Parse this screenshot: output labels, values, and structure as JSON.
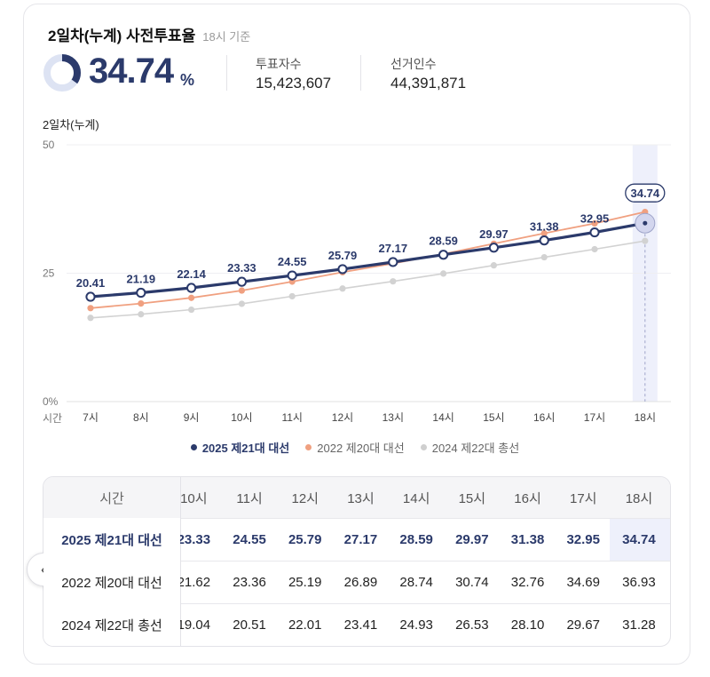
{
  "header": {
    "title": "2일차(누계) 사전투표율",
    "basis": "18시 기준",
    "rate": "34.74",
    "rate_unit": "%",
    "voters_label": "투표자수",
    "voters_value": "15,423,607",
    "electorate_label": "선거인수",
    "electorate_value": "44,391,871"
  },
  "colors": {
    "series_2025": "#2b3a6b",
    "series_2022": "#f0a080",
    "series_2024": "#d2d2d2",
    "highlight_band": "#eef0fb",
    "donut_track": "#dde3f3"
  },
  "chart_data": {
    "type": "line",
    "title": "2일차(누계)",
    "xlabel": "시간",
    "ylabel": "",
    "ylim": [
      0,
      50
    ],
    "y_ticks": [
      "0%",
      "25",
      "50"
    ],
    "y_tick_values": [
      0,
      25,
      50
    ],
    "categories": [
      "7시",
      "8시",
      "9시",
      "10시",
      "11시",
      "12시",
      "13시",
      "14시",
      "15시",
      "16시",
      "17시",
      "18시"
    ],
    "highlight_category": "18시",
    "series": [
      {
        "name": "2025 제21대 대선",
        "values": [
          20.41,
          21.19,
          22.14,
          23.33,
          24.55,
          25.79,
          27.17,
          28.59,
          29.97,
          31.38,
          32.95,
          34.74
        ],
        "labeled": true
      },
      {
        "name": "2022 제20대 대선",
        "values": [
          18.2,
          19.1,
          20.2,
          21.62,
          23.36,
          25.19,
          26.89,
          28.74,
          30.74,
          32.76,
          34.69,
          36.93
        ],
        "labeled": false
      },
      {
        "name": "2024 제22대 총선",
        "values": [
          16.3,
          17.0,
          17.9,
          19.04,
          20.51,
          22.01,
          23.41,
          24.93,
          26.53,
          28.1,
          29.67,
          31.28
        ],
        "labeled": false
      }
    ],
    "value_labels": [
      "20.41",
      "21.19",
      "22.14",
      "23.33",
      "24.55",
      "25.79",
      "27.17",
      "28.59",
      "29.97",
      "31.38",
      "32.95",
      "34.74"
    ]
  },
  "legend": [
    {
      "label": "2025 제21대 대선"
    },
    {
      "label": "2022 제20대 대선"
    },
    {
      "label": "2024 제22대 총선"
    }
  ],
  "table": {
    "header_label": "시간",
    "columns": [
      "10시",
      "11시",
      "12시",
      "13시",
      "14시",
      "15시",
      "16시",
      "17시",
      "18시"
    ],
    "rows": [
      {
        "label": "2025 제21대 대선",
        "values": [
          "23.33",
          "24.55",
          "25.79",
          "27.17",
          "28.59",
          "29.97",
          "31.38",
          "32.95",
          "34.74"
        ]
      },
      {
        "label": "2022 제20대 대선",
        "values": [
          "21.62",
          "23.36",
          "25.19",
          "26.89",
          "28.74",
          "30.74",
          "32.76",
          "34.69",
          "36.93"
        ]
      },
      {
        "label": "2024 제22대 총선",
        "values": [
          "19.04",
          "20.51",
          "22.01",
          "23.41",
          "24.93",
          "26.53",
          "28.10",
          "29.67",
          "31.28"
        ]
      }
    ]
  },
  "nav": {
    "prev_icon": "chevron-left-icon",
    "prev_glyph": "‹"
  }
}
